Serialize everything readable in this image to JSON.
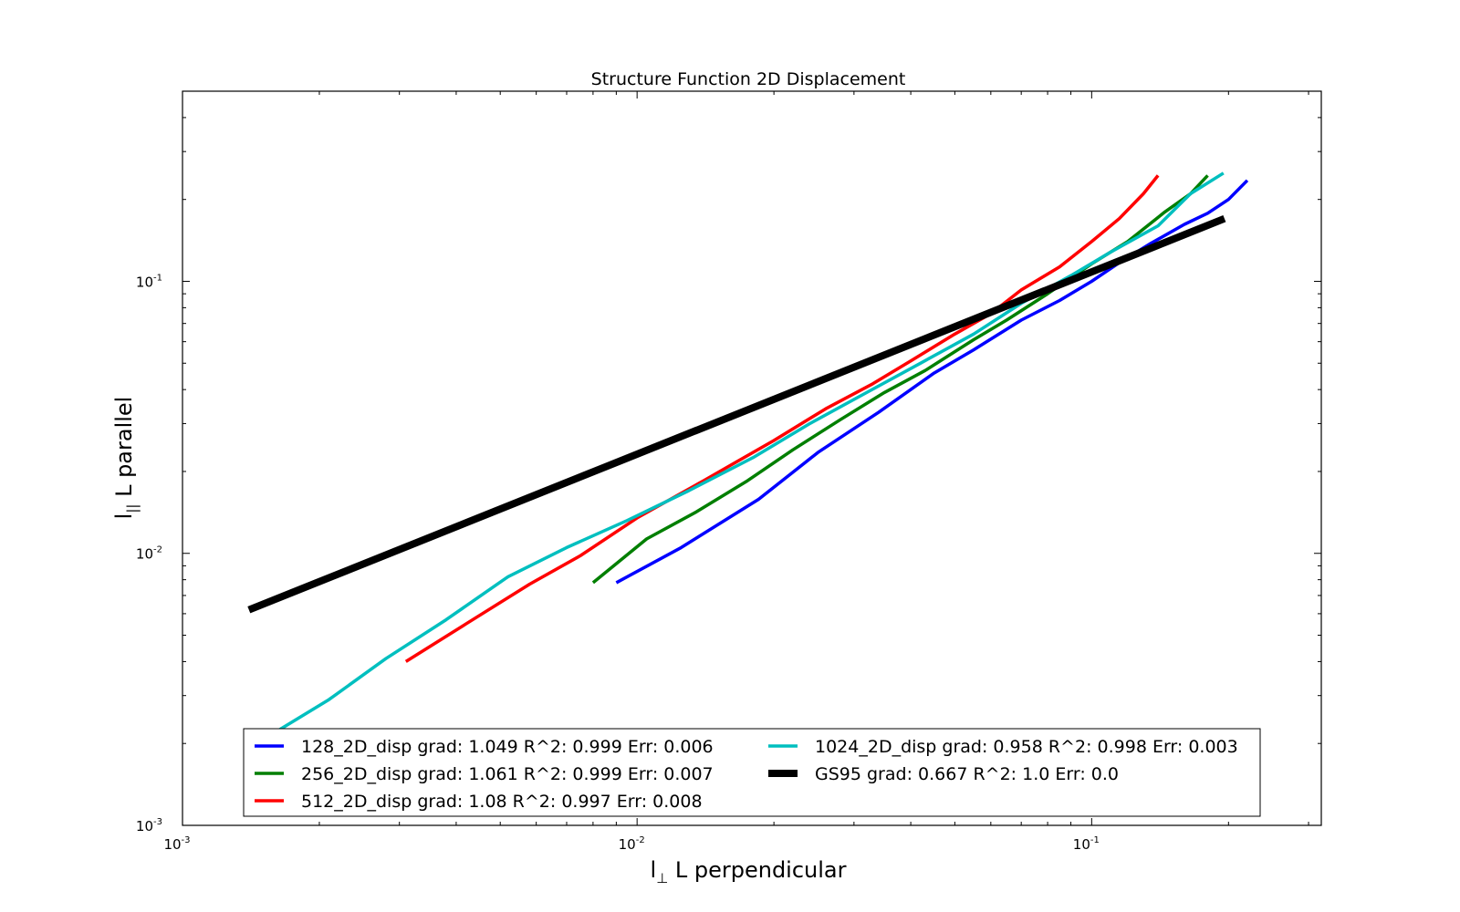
{
  "chart_data": {
    "type": "line",
    "title": "Structure Function 2D Displacement",
    "xlabel": {
      "symbol": "l",
      "sub": "⊥",
      "text": " L perpendicular"
    },
    "ylabel": {
      "symbol": "l",
      "sub": "||",
      "text": " L parallel"
    },
    "xscale": "log",
    "yscale": "log",
    "xlim": [
      0.001,
      0.32
    ],
    "ylim": [
      0.001,
      0.5
    ],
    "xticks": [
      {
        "value": 0.001,
        "base": "10",
        "exp": "-3"
      },
      {
        "value": 0.01,
        "base": "10",
        "exp": "-2"
      },
      {
        "value": 0.1,
        "base": "10",
        "exp": "-1"
      }
    ],
    "yticks": [
      {
        "value": 0.001,
        "base": "10",
        "exp": "-3"
      },
      {
        "value": 0.01,
        "base": "10",
        "exp": "-2"
      },
      {
        "value": 0.1,
        "base": "10",
        "exp": "-1"
      }
    ],
    "grid": false,
    "legend_position": "bottom",
    "series": [
      {
        "name": "128_2D_disp grad: 1.049 R^2: 0.999  Err: 0.006",
        "color": "#0000ff",
        "width": 3.5,
        "points": [
          [
            0.009,
            0.0078
          ],
          [
            0.0125,
            0.0105
          ],
          [
            0.0185,
            0.0158
          ],
          [
            0.025,
            0.0235
          ],
          [
            0.034,
            0.033
          ],
          [
            0.045,
            0.046
          ],
          [
            0.055,
            0.056
          ],
          [
            0.07,
            0.072
          ],
          [
            0.085,
            0.085
          ],
          [
            0.1,
            0.1
          ],
          [
            0.115,
            0.117
          ],
          [
            0.135,
            0.138
          ],
          [
            0.16,
            0.162
          ],
          [
            0.18,
            0.178
          ],
          [
            0.2,
            0.2
          ],
          [
            0.22,
            0.235
          ]
        ]
      },
      {
        "name": "256_2D_disp grad: 1.061 R^2: 0.999  Err: 0.007",
        "color": "#007f00",
        "width": 3.5,
        "points": [
          [
            0.008,
            0.0078
          ],
          [
            0.0105,
            0.0113
          ],
          [
            0.0135,
            0.0142
          ],
          [
            0.0175,
            0.0185
          ],
          [
            0.022,
            0.024
          ],
          [
            0.028,
            0.031
          ],
          [
            0.035,
            0.039
          ],
          [
            0.043,
            0.047
          ],
          [
            0.055,
            0.061
          ],
          [
            0.065,
            0.072
          ],
          [
            0.08,
            0.09
          ],
          [
            0.1,
            0.116
          ],
          [
            0.12,
            0.14
          ],
          [
            0.145,
            0.18
          ],
          [
            0.165,
            0.21
          ],
          [
            0.18,
            0.245
          ]
        ]
      },
      {
        "name": "512_2D_disp grad: 1.08 R^2: 0.997  Err: 0.008",
        "color": "#ff0000",
        "width": 3.5,
        "points": [
          [
            0.0031,
            0.004
          ],
          [
            0.0042,
            0.0055
          ],
          [
            0.0058,
            0.0077
          ],
          [
            0.0075,
            0.0098
          ],
          [
            0.01,
            0.0135
          ],
          [
            0.014,
            0.0185
          ],
          [
            0.02,
            0.026
          ],
          [
            0.026,
            0.034
          ],
          [
            0.033,
            0.042
          ],
          [
            0.04,
            0.051
          ],
          [
            0.05,
            0.064
          ],
          [
            0.06,
            0.076
          ],
          [
            0.07,
            0.093
          ],
          [
            0.085,
            0.113
          ],
          [
            0.1,
            0.14
          ],
          [
            0.115,
            0.17
          ],
          [
            0.13,
            0.21
          ],
          [
            0.14,
            0.245
          ]
        ]
      },
      {
        "name": "1024_2D_disp grad: 0.958 R^2: 0.998  Err: 0.003",
        "color": "#00bfbf",
        "width": 3.5,
        "points": [
          [
            0.0016,
            0.0022
          ],
          [
            0.0021,
            0.0029
          ],
          [
            0.0028,
            0.0041
          ],
          [
            0.0038,
            0.0057
          ],
          [
            0.0052,
            0.0082
          ],
          [
            0.007,
            0.0105
          ],
          [
            0.0095,
            0.0132
          ],
          [
            0.013,
            0.017
          ],
          [
            0.018,
            0.0225
          ],
          [
            0.024,
            0.03
          ],
          [
            0.032,
            0.039
          ],
          [
            0.042,
            0.05
          ],
          [
            0.055,
            0.064
          ],
          [
            0.07,
            0.083
          ],
          [
            0.09,
            0.105
          ],
          [
            0.11,
            0.128
          ],
          [
            0.14,
            0.16
          ],
          [
            0.165,
            0.21
          ],
          [
            0.195,
            0.25
          ]
        ]
      },
      {
        "name": "GS95 grad: 0.667 R^2: 1.0  Err: 0.0",
        "color": "#000000",
        "width": 8,
        "points": [
          [
            0.0014,
            0.0062
          ],
          [
            0.196,
            0.17
          ]
        ]
      }
    ]
  }
}
